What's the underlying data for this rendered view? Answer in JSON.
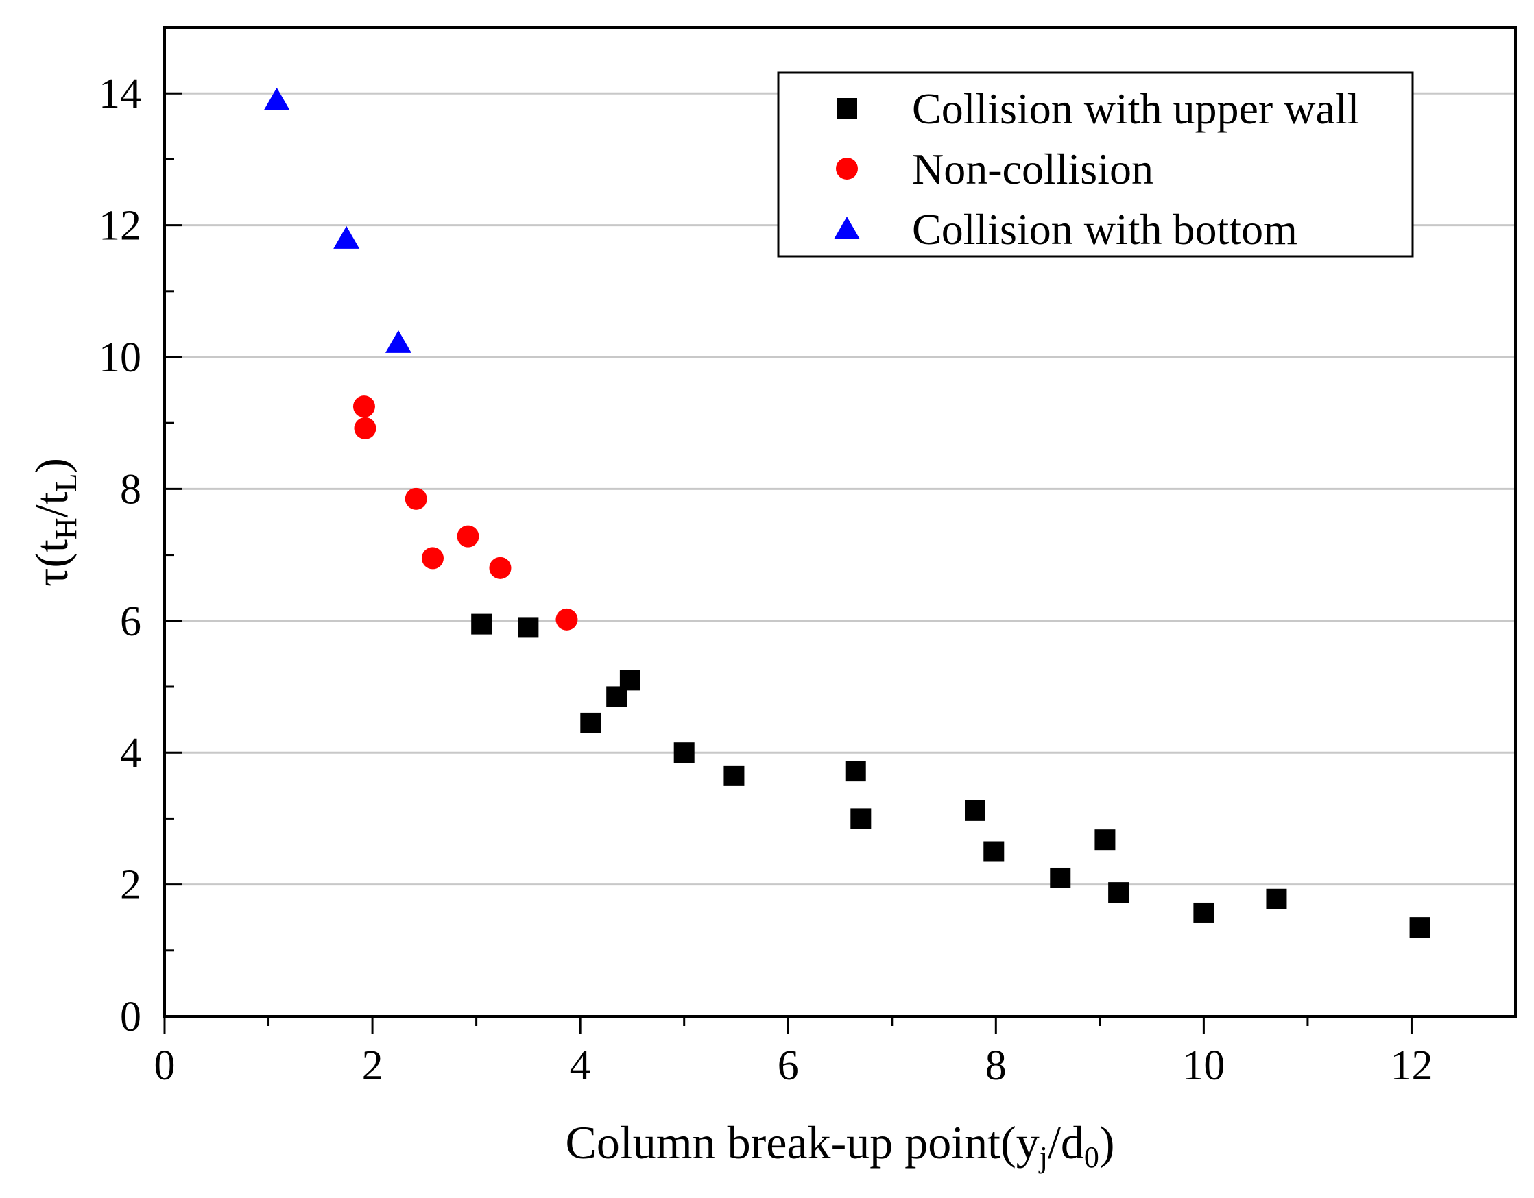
{
  "chart_data": {
    "type": "scatter",
    "title": "",
    "xlabel": {
      "parts": [
        {
          "text": "Column break-up point(y",
          "sub": false
        },
        {
          "text": "j",
          "sub": true
        },
        {
          "text": "/d",
          "sub": false
        },
        {
          "text": "0",
          "sub": true
        },
        {
          "text": ")",
          "sub": false
        }
      ]
    },
    "ylabel": {
      "parts": [
        {
          "text": "τ(t",
          "sub": false
        },
        {
          "text": "H",
          "sub": true
        },
        {
          "text": "/t",
          "sub": false
        },
        {
          "text": "L",
          "sub": true
        },
        {
          "text": ")",
          "sub": false
        }
      ]
    },
    "xlim": [
      0,
      13
    ],
    "ylim": [
      0,
      15
    ],
    "xticks": [
      0,
      2,
      4,
      6,
      8,
      10,
      12
    ],
    "xtick_labels": [
      "0",
      "2",
      "4",
      "6",
      "8",
      "10",
      "12"
    ],
    "yticks": [
      0,
      2,
      4,
      6,
      8,
      10,
      12,
      14
    ],
    "ytick_labels": [
      "0",
      "2",
      "4",
      "6",
      "8",
      "10",
      "12",
      "14"
    ],
    "grid": "horizontal",
    "legend_position": "top-right",
    "series": [
      {
        "name": "Collision with upper wall",
        "marker": "square",
        "color": "#000000",
        "points": [
          [
            3.05,
            5.95
          ],
          [
            3.5,
            5.9
          ],
          [
            4.1,
            4.45
          ],
          [
            4.35,
            4.85
          ],
          [
            4.48,
            5.1
          ],
          [
            5.0,
            4.0
          ],
          [
            5.48,
            3.65
          ],
          [
            6.65,
            3.72
          ],
          [
            6.7,
            3.0
          ],
          [
            7.8,
            3.12
          ],
          [
            7.98,
            2.5
          ],
          [
            8.62,
            2.1
          ],
          [
            9.05,
            2.68
          ],
          [
            9.18,
            1.88
          ],
          [
            10.0,
            1.57
          ],
          [
            10.7,
            1.78
          ],
          [
            12.08,
            1.35
          ]
        ]
      },
      {
        "name": "Non-collision",
        "marker": "circle",
        "color": "#ff0000",
        "points": [
          [
            1.92,
            9.25
          ],
          [
            1.93,
            8.92
          ],
          [
            2.42,
            7.85
          ],
          [
            2.58,
            6.95
          ],
          [
            2.92,
            7.28
          ],
          [
            3.23,
            6.8
          ],
          [
            3.87,
            6.02
          ]
        ]
      },
      {
        "name": "Collision with bottom",
        "marker": "triangle",
        "color": "#0000ff",
        "points": [
          [
            1.08,
            13.9
          ],
          [
            1.75,
            11.8
          ],
          [
            2.25,
            10.22
          ]
        ]
      }
    ]
  }
}
